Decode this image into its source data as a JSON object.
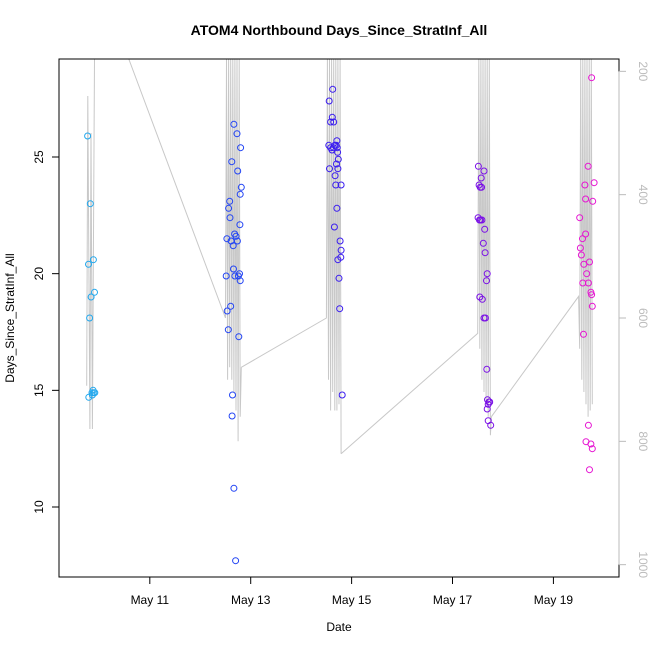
{
  "chart_data": {
    "type": "scatter",
    "title": "ATOM4 Northbound Days_Since_StratInf_All",
    "xlabel": "Date",
    "ylabel": "Days_Since_StratInf_All",
    "xlim": [
      "2016-05-09T04:48",
      "2016-05-20T07:12"
    ],
    "ylim": [
      7.0,
      29.2
    ],
    "x_ticks": [
      {
        "date": "2016-05-11",
        "label": "May 11"
      },
      {
        "date": "2016-05-13",
        "label": "May 13"
      },
      {
        "date": "2016-05-15",
        "label": "May 15"
      },
      {
        "date": "2016-05-17",
        "label": "May 17"
      },
      {
        "date": "2016-05-19",
        "label": "May 19"
      }
    ],
    "y_ticks": [
      10,
      15,
      20,
      25
    ],
    "y2": {
      "reversed": true,
      "lim": [
        1020,
        180
      ],
      "ticks": [
        200,
        400,
        600,
        800,
        1000
      ],
      "color": "#bbbbbb"
    },
    "grid": false,
    "marker": "open-circle",
    "color_scale": [
      "#1fb0f0",
      "#1a1aff",
      "#5a00f0",
      "#b000d8",
      "#f000c8"
    ],
    "flights": [
      {
        "time_range": [
          "2016-05-09T18:00",
          "2016-05-09T22:00"
        ],
        "color": "#22a8ee",
        "points": [
          [
            "2016-05-09T18:24",
            25.9
          ],
          [
            "2016-05-09T19:40",
            23.0
          ],
          [
            "2016-05-09T18:50",
            20.4
          ],
          [
            "2016-05-09T21:10",
            20.6
          ],
          [
            "2016-05-09T20:05",
            19.0
          ],
          [
            "2016-05-09T21:40",
            19.2
          ],
          [
            "2016-05-09T19:20",
            18.1
          ],
          [
            "2016-05-09T19:00",
            14.7
          ],
          [
            "2016-05-09T20:30",
            14.9
          ],
          [
            "2016-05-09T21:00",
            15.0
          ],
          [
            "2016-05-09T21:20",
            14.9
          ],
          [
            "2016-05-09T21:50",
            14.9
          ],
          [
            "2016-05-09T20:40",
            14.8
          ]
        ]
      },
      {
        "time_range": [
          "2016-05-12T12:00",
          "2016-05-12T20:00"
        ],
        "color": "#2244f4",
        "points": [
          [
            "2016-05-12T16:00",
            26.4
          ],
          [
            "2016-05-12T17:30",
            26.0
          ],
          [
            "2016-05-12T19:10",
            25.4
          ],
          [
            "2016-05-12T15:00",
            24.8
          ],
          [
            "2016-05-12T17:50",
            24.4
          ],
          [
            "2016-05-12T19:30",
            23.7
          ],
          [
            "2016-05-12T19:00",
            23.4
          ],
          [
            "2016-05-12T14:00",
            23.1
          ],
          [
            "2016-05-12T13:30",
            22.8
          ],
          [
            "2016-05-12T14:10",
            22.4
          ],
          [
            "2016-05-12T18:50",
            22.1
          ],
          [
            "2016-05-12T16:20",
            21.7
          ],
          [
            "2016-05-12T12:40",
            21.5
          ],
          [
            "2016-05-12T14:40",
            21.4
          ],
          [
            "2016-05-12T17:00",
            21.6
          ],
          [
            "2016-05-12T17:40",
            21.4
          ],
          [
            "2016-05-12T15:40",
            21.2
          ],
          [
            "2016-05-12T15:50",
            20.2
          ],
          [
            "2016-05-12T12:20",
            19.9
          ],
          [
            "2016-05-12T16:30",
            19.9
          ],
          [
            "2016-05-12T18:10",
            19.9
          ],
          [
            "2016-05-12T18:40",
            20.0
          ],
          [
            "2016-05-12T19:00",
            19.7
          ],
          [
            "2016-05-12T14:30",
            18.6
          ],
          [
            "2016-05-12T12:50",
            18.4
          ],
          [
            "2016-05-12T13:20",
            17.6
          ],
          [
            "2016-05-12T18:20",
            17.3
          ],
          [
            "2016-05-12T15:20",
            14.8
          ],
          [
            "2016-05-12T15:10",
            13.9
          ],
          [
            "2016-05-12T16:00",
            10.8
          ],
          [
            "2016-05-12T16:50",
            7.7
          ]
        ]
      },
      {
        "time_range": [
          "2016-05-14T12:00",
          "2016-05-14T20:00"
        ],
        "color": "#3a1cf0",
        "points": [
          [
            "2016-05-14T13:20",
            27.4
          ],
          [
            "2016-05-14T15:00",
            27.9
          ],
          [
            "2016-05-14T14:50",
            26.7
          ],
          [
            "2016-05-14T14:00",
            26.5
          ],
          [
            "2016-05-14T15:30",
            26.5
          ],
          [
            "2016-05-14T13:10",
            25.5
          ],
          [
            "2016-05-14T14:00",
            25.4
          ],
          [
            "2016-05-14T14:40",
            25.3
          ],
          [
            "2016-05-14T15:20",
            25.4
          ],
          [
            "2016-05-14T16:00",
            25.5
          ],
          [
            "2016-05-14T16:40",
            25.5
          ],
          [
            "2016-05-14T17:00",
            25.7
          ],
          [
            "2016-05-14T17:10",
            25.4
          ],
          [
            "2016-05-14T17:20",
            25.2
          ],
          [
            "2016-05-14T17:40",
            24.9
          ],
          [
            "2016-05-14T16:50",
            24.7
          ],
          [
            "2016-05-14T13:30",
            24.5
          ],
          [
            "2016-05-14T17:30",
            24.5
          ],
          [
            "2016-05-14T16:10",
            24.2
          ],
          [
            "2016-05-14T16:30",
            23.8
          ],
          [
            "2016-05-14T19:00",
            23.8
          ],
          [
            "2016-05-14T17:00",
            22.8
          ],
          [
            "2016-05-14T15:50",
            22.0
          ],
          [
            "2016-05-14T18:30",
            21.4
          ],
          [
            "2016-05-14T19:00",
            21.0
          ],
          [
            "2016-05-14T18:50",
            20.7
          ],
          [
            "2016-05-14T17:30",
            20.6
          ],
          [
            "2016-05-14T18:00",
            19.8
          ],
          [
            "2016-05-14T18:20",
            18.5
          ],
          [
            "2016-05-14T19:30",
            14.8
          ]
        ]
      },
      {
        "time_range": [
          "2016-05-17T12:00",
          "2016-05-17T20:00"
        ],
        "color": "#7a10e6",
        "points": [
          [
            "2016-05-17T12:20",
            24.6
          ],
          [
            "2016-05-17T15:00",
            24.4
          ],
          [
            "2016-05-17T13:40",
            24.1
          ],
          [
            "2016-05-17T12:40",
            23.8
          ],
          [
            "2016-05-17T13:10",
            23.7
          ],
          [
            "2016-05-17T13:50",
            23.7
          ],
          [
            "2016-05-17T12:10",
            22.4
          ],
          [
            "2016-05-17T12:50",
            22.3
          ],
          [
            "2016-05-17T13:20",
            22.3
          ],
          [
            "2016-05-17T14:00",
            22.3
          ],
          [
            "2016-05-17T15:20",
            21.9
          ],
          [
            "2016-05-17T14:40",
            21.3
          ],
          [
            "2016-05-17T15:30",
            20.9
          ],
          [
            "2016-05-17T16:30",
            20.0
          ],
          [
            "2016-05-17T16:10",
            19.7
          ],
          [
            "2016-05-17T13:00",
            19.0
          ],
          [
            "2016-05-17T14:10",
            18.9
          ],
          [
            "2016-05-17T15:00",
            18.1
          ],
          [
            "2016-05-17T15:40",
            18.1
          ],
          [
            "2016-05-17T16:20",
            15.9
          ],
          [
            "2016-05-17T16:40",
            14.6
          ],
          [
            "2016-05-17T17:00",
            14.4
          ],
          [
            "2016-05-17T17:20",
            14.5
          ],
          [
            "2016-05-17T17:40",
            14.5
          ],
          [
            "2016-05-17T16:30",
            14.2
          ],
          [
            "2016-05-17T17:00",
            13.7
          ],
          [
            "2016-05-17T18:10",
            13.5
          ]
        ]
      },
      {
        "time_range": [
          "2016-05-19T12:00",
          "2016-05-19T20:00"
        ],
        "color": "#e614d2",
        "points": [
          [
            "2016-05-19T18:10",
            28.4
          ],
          [
            "2016-05-19T16:30",
            24.6
          ],
          [
            "2016-05-19T15:00",
            23.8
          ],
          [
            "2016-05-19T19:20",
            23.9
          ],
          [
            "2016-05-19T15:20",
            23.2
          ],
          [
            "2016-05-19T18:40",
            23.1
          ],
          [
            "2016-05-19T12:30",
            22.4
          ],
          [
            "2016-05-19T15:20",
            21.7
          ],
          [
            "2016-05-19T13:50",
            21.5
          ],
          [
            "2016-05-19T12:50",
            21.1
          ],
          [
            "2016-05-19T13:20",
            20.8
          ],
          [
            "2016-05-19T17:10",
            20.5
          ],
          [
            "2016-05-19T14:30",
            20.4
          ],
          [
            "2016-05-19T15:50",
            20.0
          ],
          [
            "2016-05-19T14:00",
            19.6
          ],
          [
            "2016-05-19T16:40",
            19.6
          ],
          [
            "2016-05-19T17:50",
            19.2
          ],
          [
            "2016-05-19T18:10",
            19.1
          ],
          [
            "2016-05-19T18:30",
            18.6
          ],
          [
            "2016-05-19T14:20",
            17.4
          ],
          [
            "2016-05-19T16:40",
            13.5
          ],
          [
            "2016-05-19T15:30",
            12.8
          ],
          [
            "2016-05-19T17:50",
            12.7
          ],
          [
            "2016-05-19T18:30",
            12.5
          ],
          [
            "2016-05-19T17:10",
            11.6
          ]
        ]
      }
    ],
    "gray_trace": {
      "color": "#c8c8c8",
      "axis": "y2",
      "segments": [
        [
          [
            "2016-05-09T18:00",
            710
          ],
          [
            "2016-05-09T18:30",
            240
          ],
          [
            "2016-05-09T19:30",
            780
          ],
          [
            "2016-05-09T20:00",
            300
          ],
          [
            "2016-05-09T20:40",
            780
          ],
          [
            "2016-05-09T21:40",
            180
          ]
        ],
        [
          [
            "2016-05-10T14:00",
            180
          ],
          [
            "2016-05-12T12:00",
            600
          ],
          [
            "2016-05-12T12:30",
            180
          ],
          [
            "2016-05-12T13:00",
            700
          ],
          [
            "2016-05-12T13:30",
            180
          ],
          [
            "2016-05-12T14:00",
            680
          ],
          [
            "2016-05-12T14:30",
            180
          ],
          [
            "2016-05-12T15:00",
            700
          ],
          [
            "2016-05-12T15:30",
            180
          ],
          [
            "2016-05-12T16:00",
            720
          ],
          [
            "2016-05-12T16:30",
            180
          ],
          [
            "2016-05-12T17:00",
            750
          ],
          [
            "2016-05-12T17:30",
            180
          ],
          [
            "2016-05-12T18:00",
            800
          ],
          [
            "2016-05-12T18:30",
            180
          ],
          [
            "2016-05-12T19:00",
            760
          ],
          [
            "2016-05-12T19:30",
            680
          ]
        ],
        [
          [
            "2016-05-12T19:30",
            680
          ],
          [
            "2016-05-14T12:00",
            600
          ],
          [
            "2016-05-14T12:30",
            180
          ],
          [
            "2016-05-14T13:00",
            700
          ],
          [
            "2016-05-14T13:30",
            180
          ],
          [
            "2016-05-14T14:00",
            750
          ],
          [
            "2016-05-14T14:30",
            180
          ],
          [
            "2016-05-14T15:00",
            720
          ],
          [
            "2016-05-14T15:30",
            180
          ],
          [
            "2016-05-14T16:00",
            750
          ],
          [
            "2016-05-14T16:30",
            180
          ],
          [
            "2016-05-14T17:00",
            750
          ],
          [
            "2016-05-14T17:30",
            180
          ],
          [
            "2016-05-14T18:00",
            740
          ],
          [
            "2016-05-14T18:30",
            180
          ],
          [
            "2016-05-14T19:00",
            820
          ]
        ],
        [
          [
            "2016-05-14T19:00",
            820
          ],
          [
            "2016-05-17T12:00",
            625
          ],
          [
            "2016-05-17T12:30",
            180
          ],
          [
            "2016-05-17T13:00",
            650
          ],
          [
            "2016-05-17T13:30",
            180
          ],
          [
            "2016-05-17T14:00",
            700
          ],
          [
            "2016-05-17T14:30",
            180
          ],
          [
            "2016-05-17T15:00",
            720
          ],
          [
            "2016-05-17T15:30",
            180
          ],
          [
            "2016-05-17T16:00",
            740
          ],
          [
            "2016-05-17T16:30",
            180
          ],
          [
            "2016-05-17T17:00",
            760
          ],
          [
            "2016-05-17T17:30",
            180
          ],
          [
            "2016-05-17T18:00",
            790
          ],
          [
            "2016-05-17T18:30",
            760
          ]
        ],
        [
          [
            "2016-05-17T18:30",
            760
          ],
          [
            "2016-05-19T12:00",
            565
          ],
          [
            "2016-05-19T12:30",
            650
          ],
          [
            "2016-05-19T13:00",
            180
          ],
          [
            "2016-05-19T13:30",
            700
          ],
          [
            "2016-05-19T14:00",
            180
          ],
          [
            "2016-05-19T14:30",
            720
          ],
          [
            "2016-05-19T15:00",
            180
          ],
          [
            "2016-05-19T15:30",
            740
          ],
          [
            "2016-05-19T16:00",
            180
          ],
          [
            "2016-05-19T16:30",
            760
          ],
          [
            "2016-05-19T17:00",
            180
          ],
          [
            "2016-05-19T17:30",
            750
          ],
          [
            "2016-05-19T18:00",
            180
          ],
          [
            "2016-05-19T18:30",
            740
          ]
        ]
      ]
    }
  }
}
